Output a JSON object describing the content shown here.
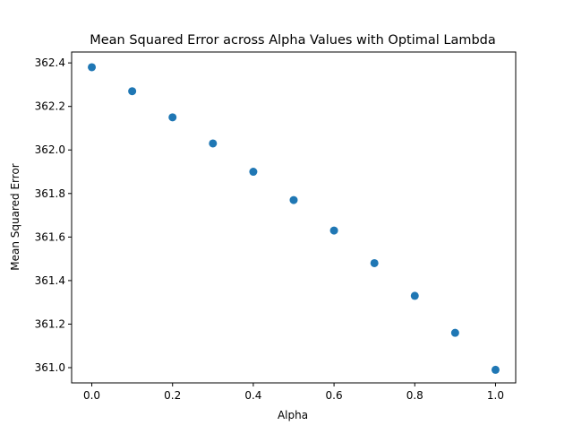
{
  "chart_data": {
    "type": "scatter",
    "title": "Mean Squared Error across Alpha Values with Optimal Lambda",
    "xlabel": "Alpha",
    "ylabel": "Mean Squared Error",
    "xlim": [
      -0.05,
      1.05
    ],
    "ylim": [
      360.93,
      362.45
    ],
    "xticks": [
      0.0,
      0.2,
      0.4,
      0.6,
      0.8,
      1.0
    ],
    "xtick_labels": [
      "0.0",
      "0.2",
      "0.4",
      "0.6",
      "0.8",
      "1.0"
    ],
    "yticks": [
      361.0,
      361.2,
      361.4,
      361.6,
      361.8,
      362.0,
      362.2,
      362.4
    ],
    "ytick_labels": [
      "361.0",
      "361.2",
      "361.4",
      "361.6",
      "361.8",
      "362.0",
      "362.2",
      "362.4"
    ],
    "grid": false,
    "color": "#1f77b4",
    "series": [
      {
        "x": [
          0.0,
          0.1,
          0.2,
          0.3,
          0.4,
          0.5,
          0.6,
          0.7,
          0.8,
          0.9,
          1.0
        ],
        "y": [
          362.38,
          362.27,
          362.15,
          362.03,
          361.9,
          361.77,
          361.63,
          361.48,
          361.33,
          361.16,
          360.99
        ]
      }
    ]
  }
}
